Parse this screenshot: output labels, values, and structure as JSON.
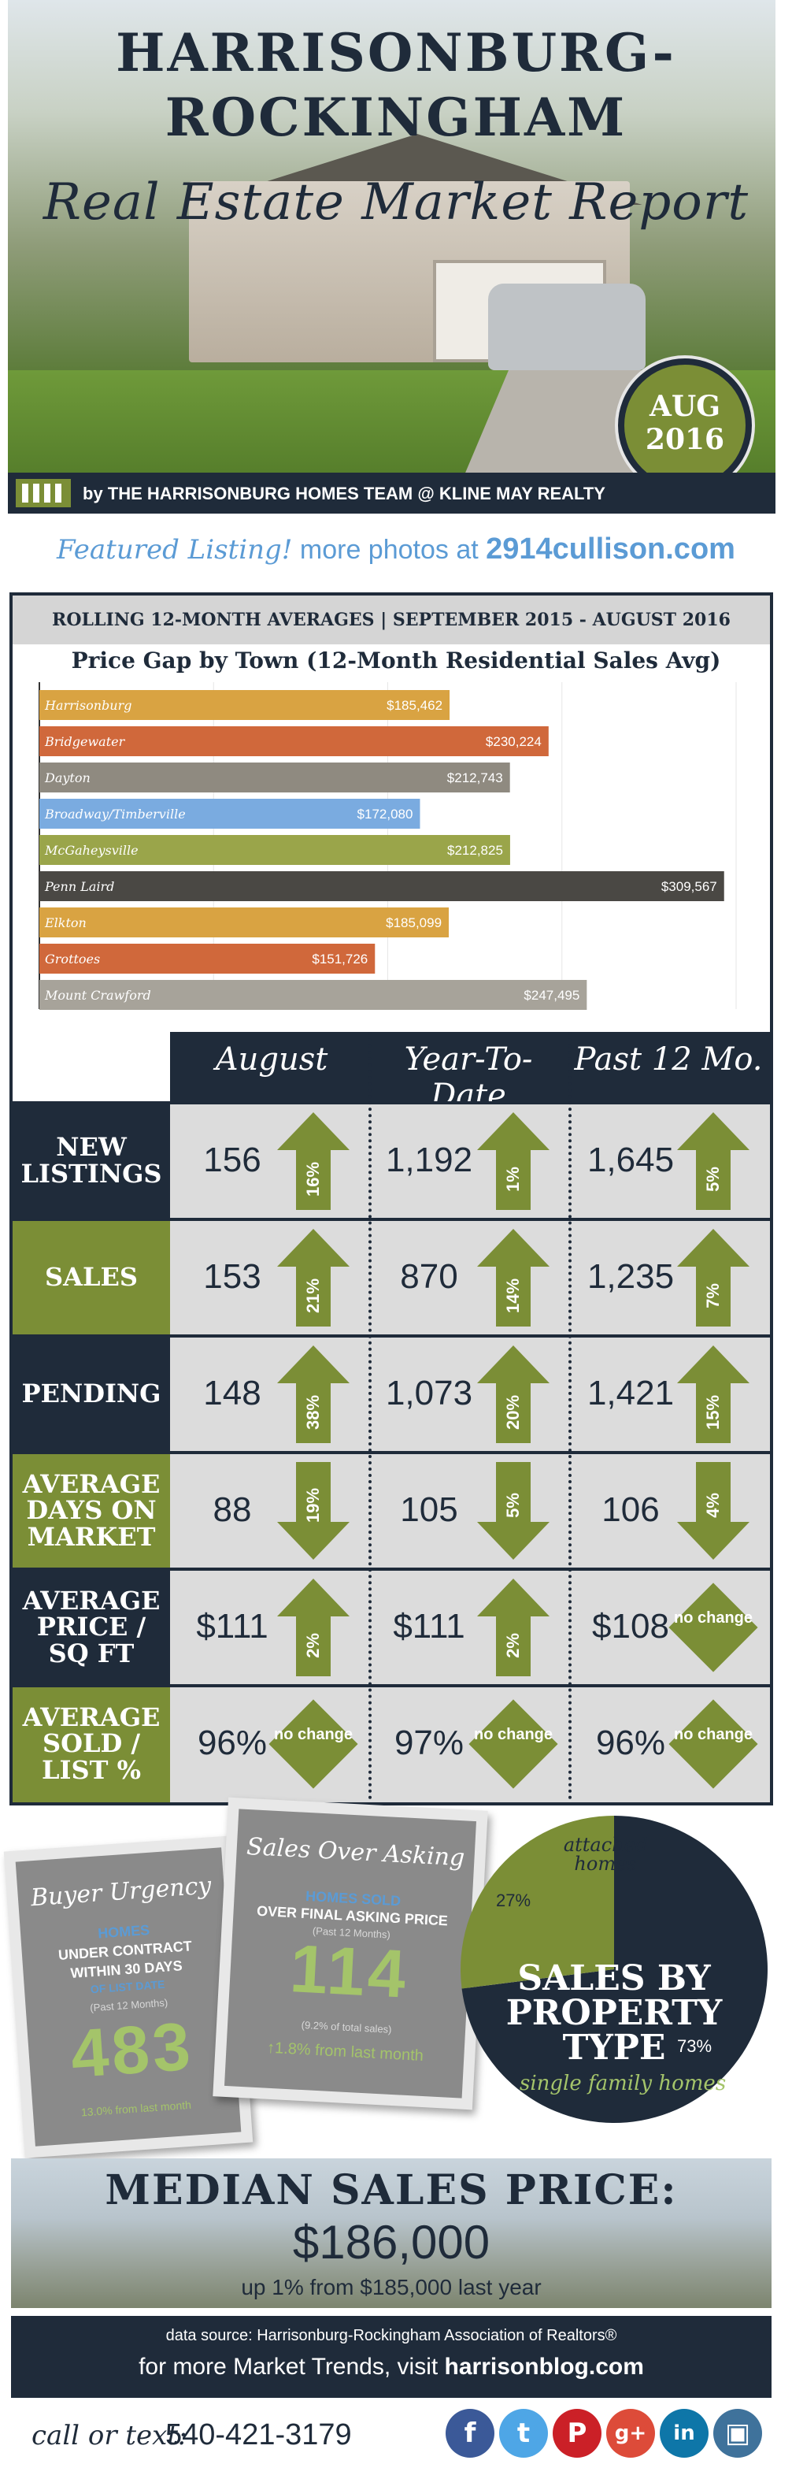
{
  "header": {
    "title_line1": "HARRISONBURG-",
    "title_line2": "ROCKINGHAM",
    "title_line3": "Real Estate Market Report",
    "badge_month": "AUG",
    "badge_year": "2016",
    "byline": "by THE HARRISONBURG HOMES TEAM @ KLINE MAY REALTY"
  },
  "featured": {
    "label": "Featured Listing!",
    "middle": "more photos at",
    "link": "2914cullison.com"
  },
  "rolling_bar": "ROLLING 12-MONTH AVERAGES | SEPTEMBER 2015 - AUGUST 2016",
  "chart_data": {
    "type": "bar",
    "orientation": "horizontal",
    "title": "Price Gap by Town (12-Month Residential Sales Avg)",
    "categories": [
      "Harrisonburg",
      "Bridgewater",
      "Dayton",
      "Broadway/Timberville",
      "McGaheysville",
      "Penn Laird",
      "Elkton",
      "Grottoes",
      "Mount Crawford"
    ],
    "values": [
      185462,
      230224,
      212743,
      172080,
      212825,
      309567,
      185099,
      151726,
      247495
    ],
    "value_labels": [
      "$185,462",
      "$230,224",
      "$212,743",
      "$172,080",
      "$212,825",
      "$309,567",
      "$185,099",
      "$151,726",
      "$247,495"
    ],
    "xlim": [
      0,
      315000
    ],
    "colors": [
      "#d9a342",
      "#d0683b",
      "#8f8a80",
      "#7aabe0",
      "#9aa54a",
      "#4a4844",
      "#d9a342",
      "#d0683b",
      "#a7a39a"
    ]
  },
  "table": {
    "columns": [
      "August",
      "Year-To-Date",
      "Past 12 Mo."
    ],
    "rows": [
      {
        "label": "NEW LISTINGS",
        "cells": [
          {
            "value": "156",
            "change": "16%",
            "dir": "up"
          },
          {
            "value": "1,192",
            "change": "1%",
            "dir": "up"
          },
          {
            "value": "1,645",
            "change": "5%",
            "dir": "up"
          }
        ]
      },
      {
        "label": "SALES",
        "cells": [
          {
            "value": "153",
            "change": "21%",
            "dir": "up"
          },
          {
            "value": "870",
            "change": "14%",
            "dir": "up"
          },
          {
            "value": "1,235",
            "change": "7%",
            "dir": "up"
          }
        ]
      },
      {
        "label": "PENDING",
        "cells": [
          {
            "value": "148",
            "change": "38%",
            "dir": "up"
          },
          {
            "value": "1,073",
            "change": "20%",
            "dir": "up"
          },
          {
            "value": "1,421",
            "change": "15%",
            "dir": "up"
          }
        ]
      },
      {
        "label": "AVERAGE DAYS ON MARKET",
        "cells": [
          {
            "value": "88",
            "change": "19%",
            "dir": "down"
          },
          {
            "value": "105",
            "change": "5%",
            "dir": "down"
          },
          {
            "value": "106",
            "change": "4%",
            "dir": "down"
          }
        ]
      },
      {
        "label": "AVERAGE PRICE / SQ FT",
        "cells": [
          {
            "value": "$111",
            "change": "2%",
            "dir": "up"
          },
          {
            "value": "$111",
            "change": "2%",
            "dir": "up"
          },
          {
            "value": "$108",
            "change": "no change",
            "dir": "none"
          }
        ]
      },
      {
        "label": "AVERAGE SOLD / LIST %",
        "cells": [
          {
            "value": "96%",
            "change": "no change",
            "dir": "none"
          },
          {
            "value": "97%",
            "change": "no change",
            "dir": "none"
          },
          {
            "value": "96%",
            "change": "no change",
            "dir": "none"
          }
        ]
      }
    ]
  },
  "buyer_urgency": {
    "title": "Buyer Urgency",
    "line1": "HOMES",
    "line2": "UNDER CONTRACT",
    "line3": "WITHIN 30 DAYS",
    "line4": "OF LIST DATE",
    "period": "(Past 12 Months)",
    "value": "483",
    "foot": "13.0% from last month"
  },
  "sales_over_asking": {
    "title": "Sales Over Asking",
    "line1": "HOMES SOLD",
    "line2": "OVER FINAL ASKING PRICE",
    "period": "(Past 12 Months)",
    "value": "114",
    "share": "(9.2% of total sales)",
    "foot": "↑1.8% from last month"
  },
  "property_type": {
    "title_line1": "SALES BY",
    "title_line2": "PROPERTY",
    "title_line3": "TYPE",
    "attached_label_line1": "attached",
    "attached_label_line2": "homes",
    "attached_pct": "27%",
    "single_label": "single family homes",
    "single_pct": "73%",
    "attached_fraction": 0.27,
    "colors": {
      "attached": "#7b8e36",
      "single": "#1f2b3a"
    }
  },
  "median": {
    "title": "MEDIAN SALES PRICE:",
    "value": "$186,000",
    "change": "up 1% from $185,000 last year"
  },
  "footer": {
    "source": "data source: Harrisonburg-Rockingham Association of Realtors®",
    "trends_prefix": "for more Market Trends, visit",
    "trends_link": "harrisonblog.com",
    "call_label": "call or text:",
    "phone": "540-421-3179",
    "social": [
      {
        "icon": "facebook-icon",
        "glyph": "f",
        "color": "#3b5998"
      },
      {
        "icon": "twitter-icon",
        "glyph": "t",
        "color": "#4ea6e6"
      },
      {
        "icon": "pinterest-icon",
        "glyph": "P",
        "color": "#cb2027"
      },
      {
        "icon": "googleplus-icon",
        "glyph": "g+",
        "color": "#dd4b39"
      },
      {
        "icon": "linkedin-icon",
        "glyph": "in",
        "color": "#0e76a8"
      },
      {
        "icon": "instagram-icon",
        "glyph": "▣",
        "color": "#3f729b"
      }
    ]
  },
  "colors": {
    "navy": "#1f2b3a",
    "olive": "#7b8e36",
    "grey": "#dcdcdc",
    "blue": "#5b9bd5"
  }
}
